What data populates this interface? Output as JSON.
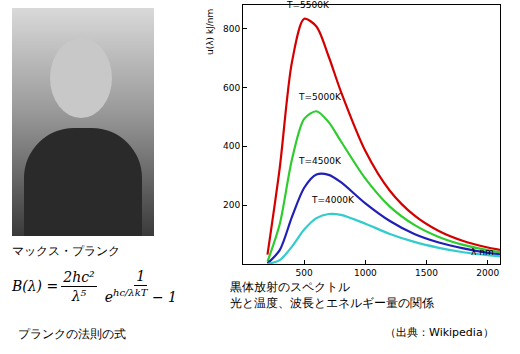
{
  "chart_data": {
    "type": "line",
    "x_label": "λ nm",
    "y_label": "u(λ) kJ/nm",
    "x": [
      200,
      300,
      400,
      500,
      600,
      700,
      800,
      1000,
      1200,
      1400,
      1600,
      1800,
      2000,
      2100
    ],
    "series": [
      {
        "name": "T=5500K",
        "color": "#d40000",
        "values": [
          32,
          326,
          686,
          833,
          807,
          705,
          586,
          384,
          249,
          165,
          112,
          78,
          56,
          48
        ]
      },
      {
        "name": "T=5000K",
        "color": "#2ecc2e",
        "values": [
          8,
          135,
          355,
          493,
          519,
          482,
          417,
          290,
          195,
          133,
          92,
          65,
          47,
          40
        ]
      },
      {
        "name": "T=4500K",
        "color": "#2020b8",
        "values": [
          2,
          47,
          160,
          259,
          304,
          303,
          278,
          206,
          146,
          102,
          73,
          53,
          38,
          33
        ]
      },
      {
        "name": "T=4000K",
        "color": "#33cccc",
        "values": [
          0,
          13,
          59,
          117,
          156,
          170,
          167,
          137,
          102,
          75,
          55,
          40,
          30,
          26
        ]
      }
    ],
    "xlim": [
      0,
      2100
    ],
    "xticks": [
      500,
      1000,
      1500,
      2000
    ],
    "ylim": [
      0,
      880
    ],
    "yticks": [
      200,
      400,
      600,
      800
    ],
    "grid": false
  },
  "portrait": {
    "caption": "マックス・プランク"
  },
  "formula": {
    "lhs": "B(λ) =",
    "fraction1": {
      "numerator": "2hc²",
      "denominator": "λ⁵"
    },
    "fraction2": {
      "numerator": "1",
      "denominator_base": "e",
      "denominator_exponent": "hc/λkT",
      "denominator_tail": " − 1"
    },
    "caption": "プランクの法則の式"
  },
  "caption": {
    "lines": [
      "黒体放射のスペクトル",
      "光と温度、波長とエネルギー量の関係"
    ],
    "source": "（出典：Wikipedia）"
  }
}
